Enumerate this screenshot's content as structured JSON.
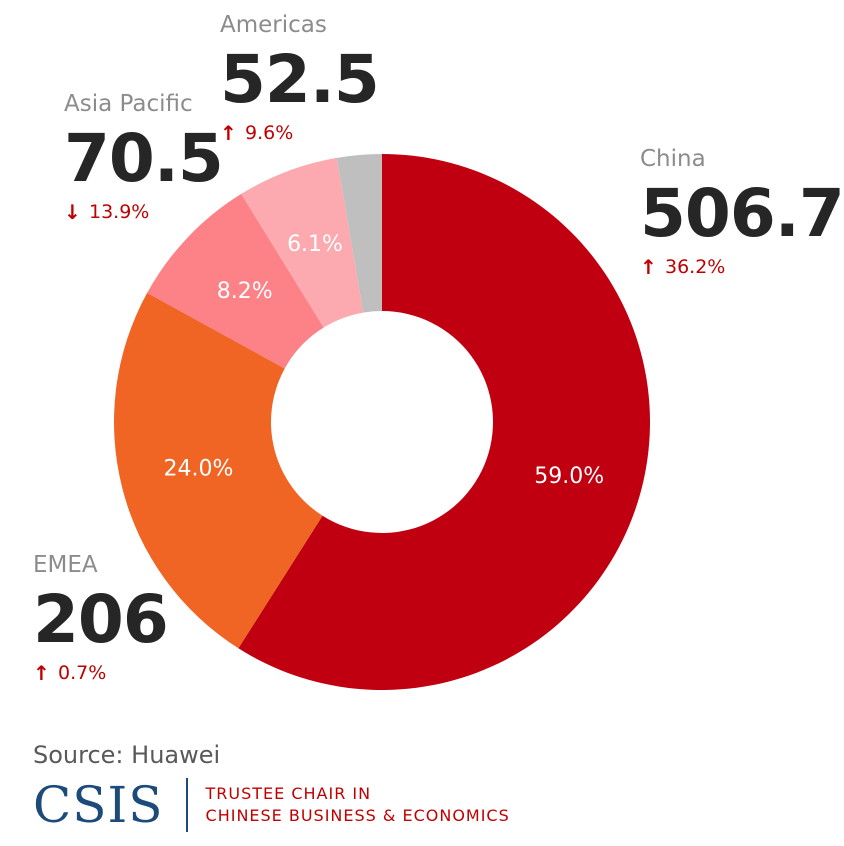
{
  "chart_data": {
    "type": "pie",
    "variant": "donut",
    "slices": [
      {
        "label": "China",
        "value": 506.7,
        "share_label": "59.0%",
        "share": 59.0,
        "change": "36.2%",
        "change_direction": "up",
        "color": "#c00010"
      },
      {
        "label": "EMEA",
        "value": 206,
        "share_label": "24.0%",
        "share": 24.0,
        "change": "0.7%",
        "change_direction": "up",
        "color": "#f06424"
      },
      {
        "label": "Asia Pacific",
        "value": 70.5,
        "share_label": "8.2%",
        "share": 8.2,
        "change": "13.9%",
        "change_direction": "down",
        "color": "#fc8288"
      },
      {
        "label": "Americas",
        "value": 52.5,
        "share_label": "6.1%",
        "share": 6.1,
        "change": "9.6%",
        "change_direction": "up",
        "color": "#fcaab0"
      },
      {
        "label": "",
        "value": null,
        "share_label": "",
        "share": 2.7,
        "change": "",
        "change_direction": "",
        "color": "#bfbfbf"
      }
    ]
  },
  "regions": {
    "americas": {
      "name": "Americas",
      "value": "52.5",
      "change": "9.6%",
      "arrow": "↑"
    },
    "asia_pacific": {
      "name": "Asia Pacific",
      "value": "70.5",
      "change": "13.9%",
      "arrow": "↓"
    },
    "china": {
      "name": "China",
      "value": "506.7",
      "change": "36.2%",
      "arrow": "↑"
    },
    "emea": {
      "name": "EMEA",
      "value": "206",
      "change": "0.7%",
      "arrow": "↑"
    }
  },
  "footer": {
    "source": "Source: Huawei",
    "logo": "CSIS",
    "logo_line1": "TRUSTEE CHAIR IN",
    "logo_line2": "CHINESE BUSINESS & ECONOMICS"
  }
}
